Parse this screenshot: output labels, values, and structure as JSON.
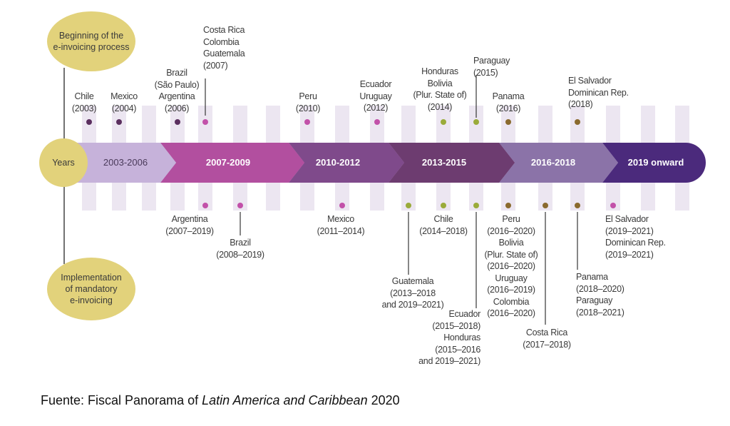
{
  "ellipses": {
    "top": [
      "Beginning of the",
      "e-invoicing process"
    ],
    "years": "Years",
    "bottom": [
      "Implementation",
      "of mandatory",
      "e-invoicing"
    ]
  },
  "segments": [
    {
      "label": "2003-2006",
      "color": "#c6b2da"
    },
    {
      "label": "2007-2009",
      "color": "#b24f9f"
    },
    {
      "label": "2010-2012",
      "color": "#7f4a8b"
    },
    {
      "label": "2013-2015",
      "color": "#6d3c70"
    },
    {
      "label": "2016-2018",
      "color": "#8b73a8"
    },
    {
      "label": "2019 onward",
      "color": "#4b2a7c"
    }
  ],
  "colors": {
    "ellipse": "#e2d27b",
    "column": "#ece6f1",
    "dot_dark": "#5b2f5f",
    "dot_pink": "#c251a9",
    "dot_olive": "#9aab3a",
    "dot_brown": "#8a6a2e",
    "line": "#444444"
  },
  "top_labels": [
    [
      "Chile",
      "(2003)"
    ],
    [
      "Mexico",
      "(2004)"
    ],
    [
      "Brazil",
      "(São Paulo)",
      "Argentina",
      "(2006)"
    ],
    [
      "Costa Rica",
      "Colombia",
      "Guatemala",
      "(2007)"
    ],
    [
      "Peru",
      "(2010)"
    ],
    [
      "Ecuador",
      "Uruguay",
      "(2012)"
    ],
    [
      "Honduras",
      "Bolivia",
      "(Plur. State of)",
      "(2014)"
    ],
    [
      "Paraguay",
      "(2015)"
    ],
    [
      "Panama",
      "(2016)"
    ],
    [
      "El Salvador",
      "Dominican Rep.",
      "(2018)"
    ]
  ],
  "bottom_labels": [
    [
      "Argentina",
      "(2007–2019)"
    ],
    [
      "Brazil",
      "(2008–2019)"
    ],
    [
      "Mexico",
      "(2011–2014)"
    ],
    [
      "Guatemala",
      "(2013–2018",
      "and 2019–2021)"
    ],
    [
      "Chile",
      "(2014–2018)"
    ],
    [
      "Ecuador",
      "(2015–2018)",
      "Honduras",
      "(2015–2016",
      "and 2019–2021)"
    ],
    [
      "Peru",
      "(2016–2020)",
      "Bolivia",
      "(Plur. State of)",
      "(2016–2020)",
      "Uruguay",
      "(2016–2019)",
      "Colombia",
      "(2016–2020)"
    ],
    [
      "Costa Rica",
      "(2017–2018)"
    ],
    [
      "Panama",
      "(2018–2020)",
      "Paraguay",
      "(2018–2021)"
    ],
    [
      "El Salvador",
      "(2019–2021)",
      "Dominican Rep.",
      "(2019–2021)"
    ]
  ],
  "footer": {
    "prefix": "Fuente: Fiscal Panorama of ",
    "italic": "Latin America and Caribbean",
    "suffix": " 2020"
  }
}
